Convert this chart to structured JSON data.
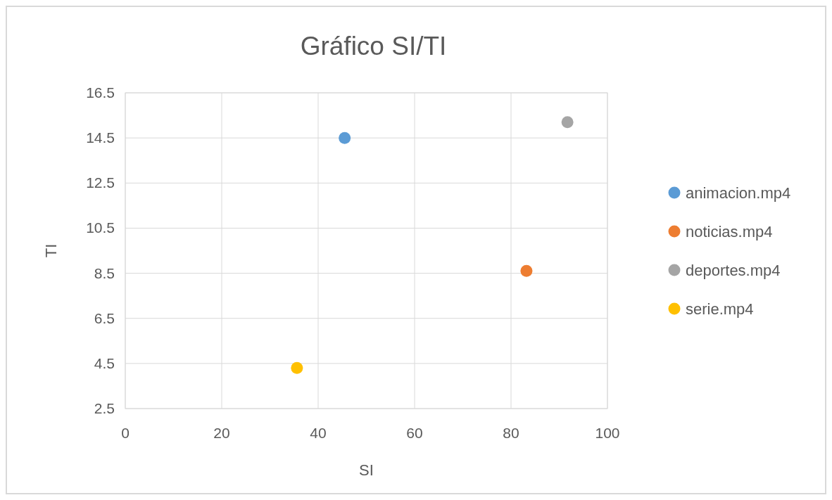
{
  "chart_data": {
    "type": "scatter",
    "title": "Gráfico SI/TI",
    "xlabel": "SI",
    "ylabel": "TI",
    "xlim": [
      0,
      100
    ],
    "xticks": [
      0,
      20,
      40,
      60,
      80,
      100
    ],
    "ylim": [
      2.5,
      16.5
    ],
    "yticks": [
      2.5,
      4.5,
      6.5,
      8.5,
      10.5,
      12.5,
      14.5,
      16.5
    ],
    "grid": true,
    "legend": "right",
    "marker": "circle",
    "series": [
      {
        "name": "animacion.mp4",
        "color": "#5b9bd5",
        "x": [
          45.5
        ],
        "values": [
          14.5
        ]
      },
      {
        "name": "noticias.mp4",
        "color": "#ed7d31",
        "x": [
          83.2
        ],
        "values": [
          8.6
        ]
      },
      {
        "name": "deportes.mp4",
        "color": "#a5a5a5",
        "x": [
          91.7
        ],
        "values": [
          15.2
        ]
      },
      {
        "name": "serie.mp4",
        "color": "#ffc000",
        "x": [
          35.6
        ],
        "values": [
          4.3
        ]
      }
    ]
  }
}
